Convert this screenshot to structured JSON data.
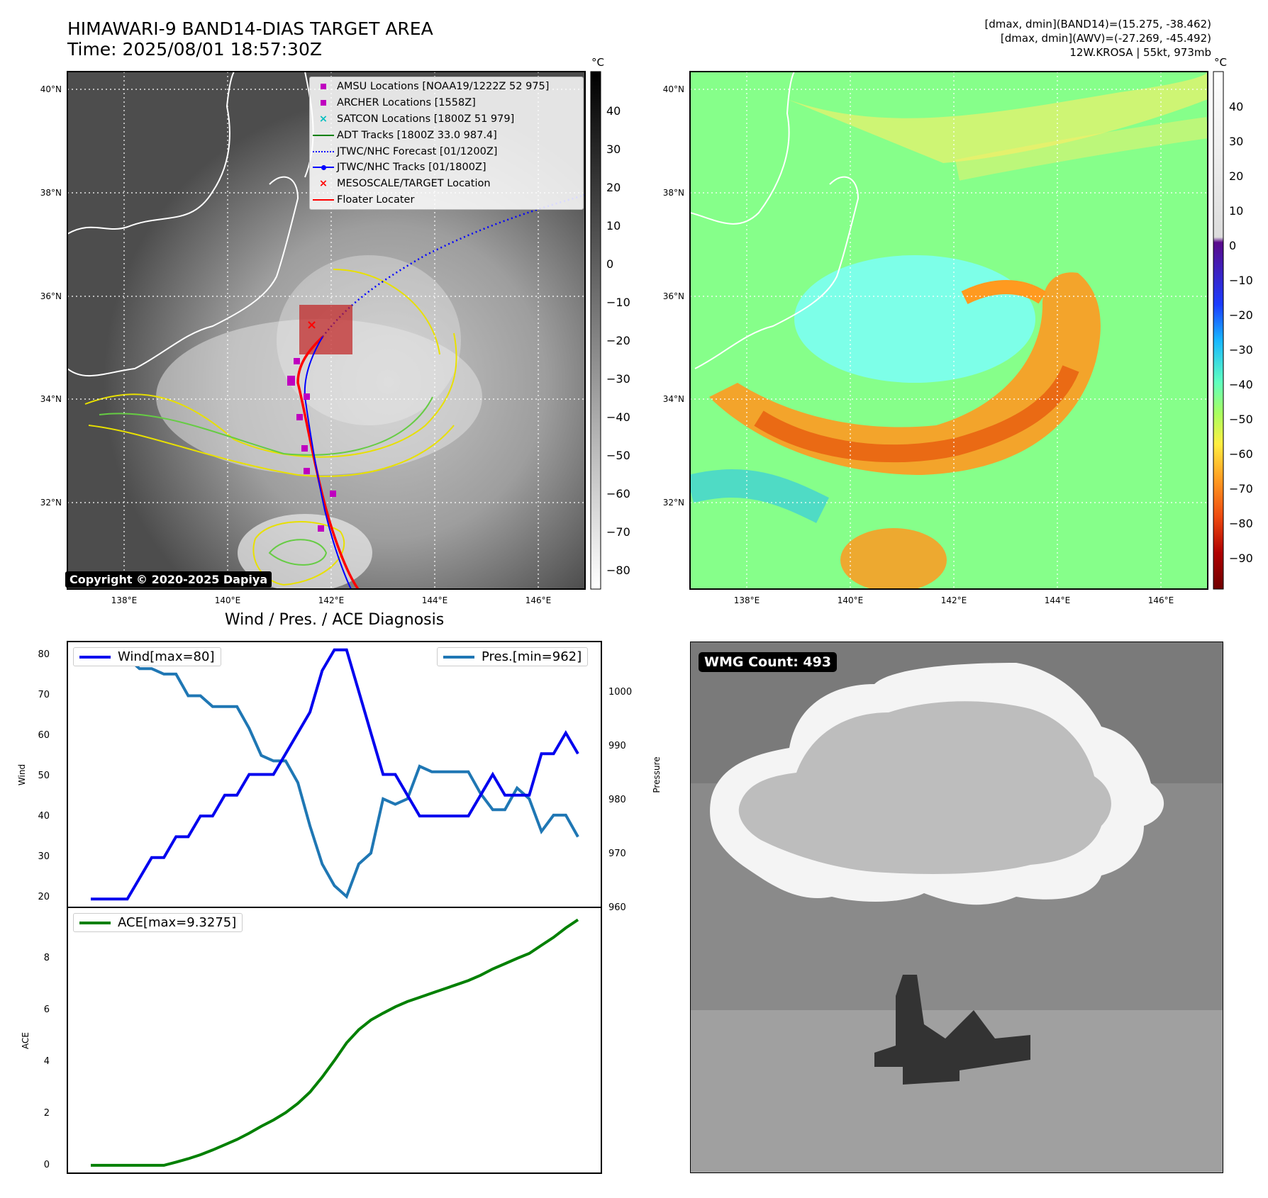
{
  "header": {
    "title_line1": "HIMAWARI-9 BAND14-DIAS TARGET AREA",
    "title_line2": "Time: 2025/08/01 18:57:30Z",
    "info_line1": "[dmax, dmin](BAND14)=(15.275, -38.462)",
    "info_line2": "[dmax, dmin](AWV)=(-27.269, -45.492)",
    "info_line3": "12W.KROSA | 55kt, 973mb"
  },
  "map_left": {
    "lat_labels": [
      "40°N",
      "38°N",
      "36°N",
      "34°N",
      "32°N"
    ],
    "lon_labels": [
      "138°E",
      "140°E",
      "142°E",
      "144°E",
      "146°E"
    ],
    "copyright": "Copyright © 2020-2025 Dapiya",
    "colorbar_unit": "°C",
    "colorbar_ticks": [
      "40",
      "30",
      "20",
      "10",
      "0",
      "−10",
      "−20",
      "−30",
      "−40",
      "−50",
      "−60",
      "−70",
      "−80"
    ],
    "legend": [
      {
        "label": "AMSU Locations [NOAA19/1222Z 52 975]",
        "symbol": "square",
        "color": "#bf00bf"
      },
      {
        "label": "ARCHER Locations [1558Z]",
        "symbol": "square",
        "color": "#bf00bf"
      },
      {
        "label": "SATCON Locations [1800Z 51 979]",
        "symbol": "x",
        "color": "#00bfbf"
      },
      {
        "label": "ADT Tracks [1800Z 33.0 987.4]",
        "symbol": "line",
        "color": "#008000"
      },
      {
        "label": "JTWC/NHC Forecast [01/1200Z]",
        "symbol": "dotted",
        "color": "#0000ff"
      },
      {
        "label": "JTWC/NHC Tracks [01/1800Z]",
        "symbol": "line-dot",
        "color": "#0000ff"
      },
      {
        "label": "MESOSCALE/TARGET Location",
        "symbol": "x",
        "color": "#ff0000"
      },
      {
        "label": "Floater Locater",
        "symbol": "line",
        "color": "#ff0000"
      }
    ]
  },
  "map_right": {
    "lat_labels": [
      "40°N",
      "38°N",
      "36°N",
      "34°N",
      "32°N"
    ],
    "lon_labels": [
      "138°E",
      "140°E",
      "142°E",
      "144°E",
      "146°E"
    ],
    "colorbar_unit": "°C",
    "colorbar_ticks": [
      "40",
      "30",
      "20",
      "10",
      "0",
      "−10",
      "−20",
      "−30",
      "−40",
      "−50",
      "−60",
      "−70",
      "−80",
      "−90"
    ]
  },
  "diagnosis": {
    "title": "Wind / Pres. / ACE Diagnosis",
    "wind_ylabel": "Wind",
    "pres_ylabel": "Pressure",
    "ace_ylabel": "ACE",
    "wind_legend": "Wind[max=80]",
    "pres_legend": "Pres.[min=962]",
    "ace_legend": "ACE[max=9.3275]",
    "wind_ticks": [
      "80",
      "70",
      "60",
      "50",
      "40",
      "30",
      "20"
    ],
    "pres_ticks": [
      "1000",
      "990",
      "980",
      "970",
      "960"
    ],
    "ace_ticks": [
      "8",
      "6",
      "4",
      "2",
      "0"
    ]
  },
  "wmg": {
    "badge": "WMG Count: 493"
  },
  "colors": {
    "wind": "#0000ee",
    "pressure": "#1f77b4",
    "ace": "#008000",
    "floater": "#ff0000",
    "yellow_contour": "#e8e000",
    "green_contour": "#66cc44"
  },
  "chart_data": [
    {
      "type": "line",
      "title": "Wind / Pres. / ACE Diagnosis",
      "ylabel": "Wind",
      "ylim": [
        18,
        82
      ],
      "series": [
        {
          "name": "Wind[max=80]",
          "values": [
            20,
            20,
            20,
            20,
            25,
            30,
            30,
            35,
            35,
            40,
            40,
            45,
            45,
            50,
            50,
            50,
            55,
            60,
            65,
            75,
            80,
            80,
            70,
            60,
            50,
            50,
            45,
            40,
            40,
            40,
            40,
            40,
            45,
            50,
            45,
            45,
            45,
            55,
            55,
            60,
            55
          ]
        }
      ]
    },
    {
      "type": "line",
      "ylabel": "Pressure",
      "ylim": [
        960,
        1009
      ],
      "series": [
        {
          "name": "Pres.[min=962]",
          "values": [
            1007,
            1007,
            1007,
            1006,
            1004,
            1004,
            1003,
            1003,
            999,
            999,
            997,
            997,
            997,
            993,
            988,
            987,
            987,
            983,
            975,
            968,
            964,
            962,
            968,
            970,
            980,
            979,
            980,
            986,
            985,
            985,
            985,
            985,
            981,
            978,
            978,
            982,
            980,
            974,
            977,
            977,
            973
          ]
        }
      ]
    },
    {
      "type": "line",
      "ylabel": "ACE",
      "ylim": [
        -0.3,
        9.8
      ],
      "series": [
        {
          "name": "ACE[max=9.3275]",
          "values": [
            0,
            0,
            0,
            0,
            0,
            0,
            0,
            0.12,
            0.25,
            0.4,
            0.58,
            0.78,
            0.98,
            1.22,
            1.48,
            1.72,
            2.0,
            2.35,
            2.78,
            3.35,
            3.98,
            4.65,
            5.15,
            5.52,
            5.78,
            6.02,
            6.22,
            6.38,
            6.54,
            6.7,
            6.86,
            7.02,
            7.22,
            7.46,
            7.66,
            7.86,
            8.05,
            8.36,
            8.66,
            9.02,
            9.33
          ]
        }
      ]
    }
  ]
}
